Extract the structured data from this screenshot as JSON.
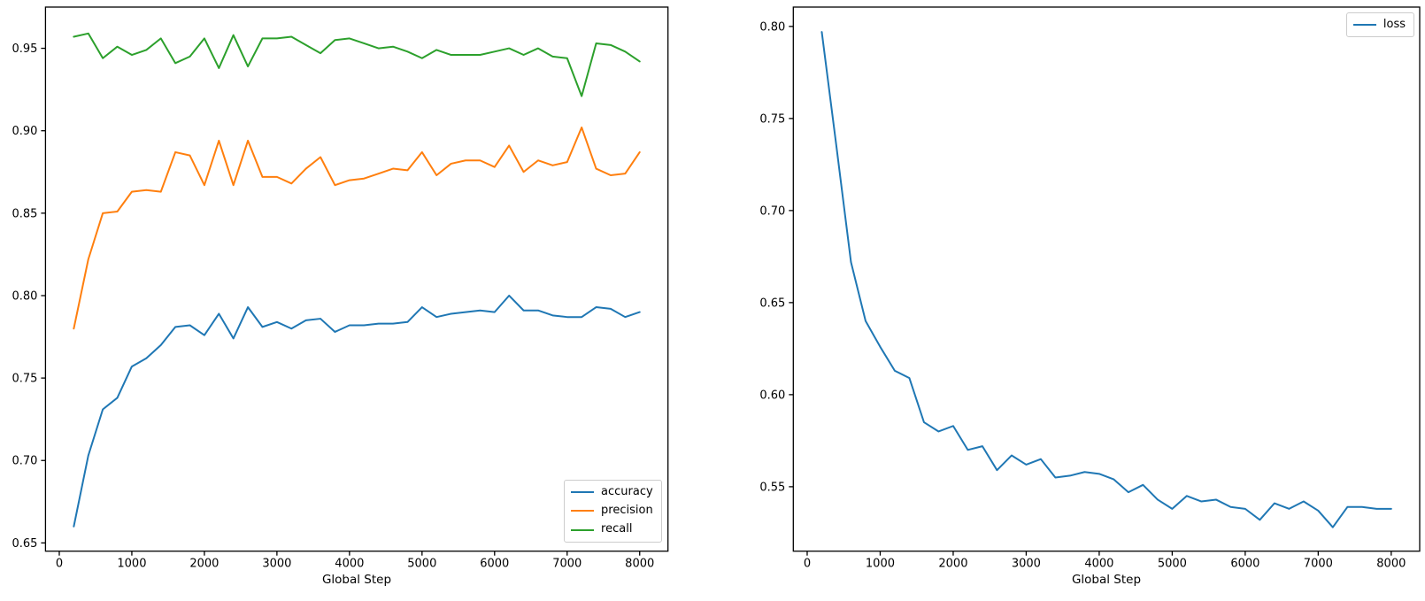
{
  "figure": {
    "background": "#ffffff",
    "text_color": "#000000",
    "spine_color": "#000000"
  },
  "chart_data": [
    {
      "id": "metrics",
      "type": "line",
      "title": "",
      "xlabel": "Global Step",
      "ylabel": "",
      "grid": false,
      "legend_position": "lower right",
      "xlim": [
        -190,
        8390
      ],
      "ylim": [
        0.645,
        0.975
      ],
      "x_ticks": [
        0,
        1000,
        2000,
        3000,
        4000,
        5000,
        6000,
        7000,
        8000
      ],
      "y_ticks": [
        0.65,
        0.7,
        0.75,
        0.8,
        0.85,
        0.9,
        0.95
      ],
      "x": [
        200,
        400,
        600,
        800,
        1000,
        1200,
        1400,
        1600,
        1800,
        2000,
        2200,
        2400,
        2600,
        2800,
        3000,
        3200,
        3400,
        3600,
        3800,
        4000,
        4200,
        4400,
        4600,
        4800,
        5000,
        5200,
        5400,
        5600,
        5800,
        6000,
        6200,
        6400,
        6600,
        6800,
        7000,
        7200,
        7400,
        7600,
        7800,
        8000
      ],
      "series": [
        {
          "name": "accuracy",
          "color": "#1f77b4",
          "values": [
            0.66,
            0.703,
            0.731,
            0.738,
            0.757,
            0.762,
            0.77,
            0.781,
            0.782,
            0.776,
            0.789,
            0.774,
            0.793,
            0.781,
            0.784,
            0.78,
            0.785,
            0.786,
            0.778,
            0.782,
            0.782,
            0.783,
            0.783,
            0.784,
            0.793,
            0.787,
            0.789,
            0.79,
            0.791,
            0.79,
            0.8,
            0.791,
            0.791,
            0.788,
            0.787,
            0.787,
            0.793,
            0.792,
            0.787,
            0.79
          ]
        },
        {
          "name": "precision",
          "color": "#ff7f0e",
          "values": [
            0.78,
            0.822,
            0.85,
            0.851,
            0.863,
            0.864,
            0.863,
            0.887,
            0.885,
            0.867,
            0.894,
            0.867,
            0.894,
            0.872,
            0.872,
            0.868,
            0.877,
            0.884,
            0.867,
            0.87,
            0.871,
            0.874,
            0.877,
            0.876,
            0.887,
            0.873,
            0.88,
            0.882,
            0.882,
            0.878,
            0.891,
            0.875,
            0.882,
            0.879,
            0.881,
            0.902,
            0.877,
            0.873,
            0.874,
            0.887
          ]
        },
        {
          "name": "recall",
          "color": "#2ca02c",
          "values": [
            0.957,
            0.959,
            0.944,
            0.951,
            0.946,
            0.949,
            0.956,
            0.941,
            0.945,
            0.956,
            0.938,
            0.958,
            0.939,
            0.956,
            0.956,
            0.957,
            0.952,
            0.947,
            0.955,
            0.956,
            0.953,
            0.95,
            0.951,
            0.948,
            0.944,
            0.949,
            0.946,
            0.946,
            0.946,
            0.948,
            0.95,
            0.946,
            0.95,
            0.945,
            0.944,
            0.921,
            0.953,
            0.952,
            0.948,
            0.942
          ]
        }
      ]
    },
    {
      "id": "loss",
      "type": "line",
      "title": "",
      "xlabel": "Global Step",
      "ylabel": "",
      "grid": false,
      "legend_position": "upper right",
      "xlim": [
        -190,
        8390
      ],
      "ylim": [
        0.515,
        0.8105
      ],
      "x_ticks": [
        0,
        1000,
        2000,
        3000,
        4000,
        5000,
        6000,
        7000,
        8000
      ],
      "y_ticks": [
        0.55,
        0.6,
        0.65,
        0.7,
        0.75,
        0.8
      ],
      "x": [
        200,
        400,
        600,
        800,
        1000,
        1200,
        1400,
        1600,
        1800,
        2000,
        2200,
        2400,
        2600,
        2800,
        3000,
        3200,
        3400,
        3600,
        3800,
        4000,
        4200,
        4400,
        4600,
        4800,
        5000,
        5200,
        5400,
        5600,
        5800,
        6000,
        6200,
        6400,
        6600,
        6800,
        7000,
        7200,
        7400,
        7600,
        7800,
        8000
      ],
      "series": [
        {
          "name": "loss",
          "color": "#1f77b4",
          "values": [
            0.797,
            0.735,
            0.672,
            0.64,
            0.626,
            0.613,
            0.609,
            0.585,
            0.58,
            0.583,
            0.57,
            0.572,
            0.559,
            0.567,
            0.562,
            0.565,
            0.555,
            0.556,
            0.558,
            0.557,
            0.554,
            0.547,
            0.551,
            0.543,
            0.538,
            0.545,
            0.542,
            0.543,
            0.539,
            0.538,
            0.532,
            0.541,
            0.538,
            0.542,
            0.537,
            0.528,
            0.539,
            0.539,
            0.538,
            0.538
          ]
        }
      ]
    }
  ]
}
